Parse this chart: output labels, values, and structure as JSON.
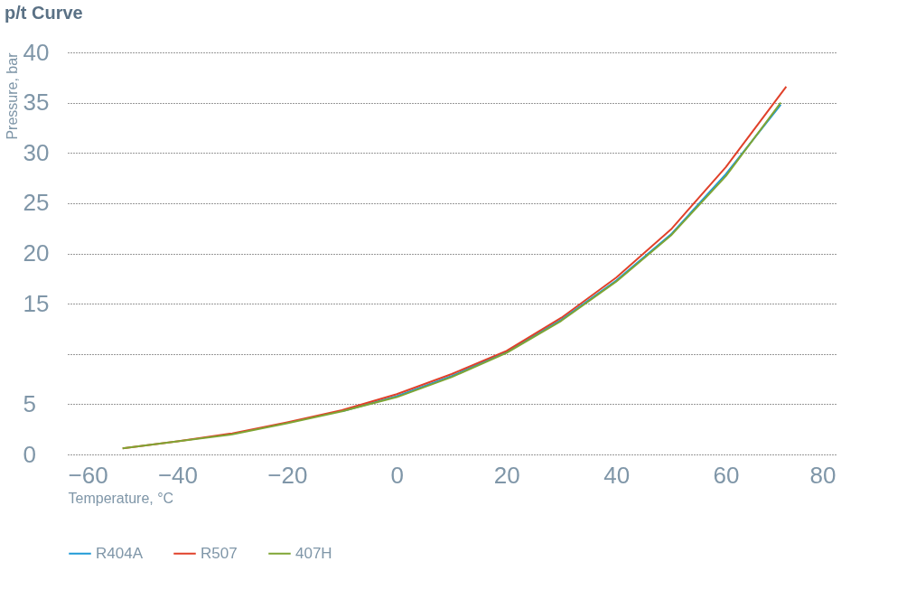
{
  "chart_data": {
    "type": "line",
    "title": "p/t Curve",
    "xlabel": "Temperature, °C",
    "ylabel": "Pressure, bar",
    "x": [
      -50,
      -40,
      -30,
      -20,
      -10,
      0,
      10,
      20,
      30,
      40,
      50,
      60,
      70
    ],
    "series": [
      {
        "name": "R404A",
        "color": "#1f9ad6",
        "values": [
          null,
          null,
          null,
          null,
          4.3,
          5.8,
          7.8,
          10.2,
          13.4,
          17.3,
          21.9,
          27.9,
          34.8
        ]
      },
      {
        "name": "R507",
        "color": "#e0412a",
        "x": [
          -50,
          -40,
          -30,
          -20,
          -10,
          0,
          10,
          20,
          30,
          40,
          50,
          60,
          71
        ],
        "values": [
          0.6,
          1.3,
          2.1,
          3.2,
          4.4,
          6.0,
          8.0,
          10.3,
          13.6,
          17.6,
          22.4,
          28.6,
          36.6
        ]
      },
      {
        "name": "407H",
        "color": "#7fa534",
        "values": [
          0.6,
          1.3,
          2.0,
          3.1,
          4.3,
          5.7,
          7.7,
          10.1,
          13.3,
          17.2,
          21.8,
          27.7,
          35.0
        ]
      }
    ],
    "xlim": [
      -60,
      80
    ],
    "xticks": [
      -60,
      -40,
      -20,
      0,
      20,
      40,
      60,
      80
    ],
    "ylim": [
      0,
      40
    ],
    "yticks": [
      0,
      5,
      {
        "value": 10,
        "label": null
      },
      15,
      20,
      25,
      30,
      35,
      40
    ],
    "grid": "y",
    "legend": "bottom",
    "marker": "none",
    "line_style": "solid"
  }
}
